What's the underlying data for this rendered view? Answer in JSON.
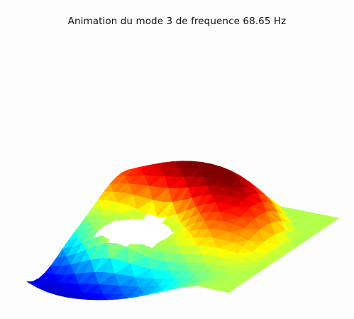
{
  "figure": {
    "title": "Animation du mode 3 de frequence 68.65 Hz"
  },
  "chart_data": {
    "type": "surface3d",
    "title": "Animation du mode 3 de frequence 68.65 Hz",
    "mode": 3,
    "frequency_hz": 68.65,
    "colormap": "jet",
    "grid": false,
    "axes_visible": false,
    "surface": "square plate with circular hole, deformed mode shape (positive lobe red, negative lobe blue, flat border near zero)",
    "value_range": [
      -1,
      1
    ]
  }
}
